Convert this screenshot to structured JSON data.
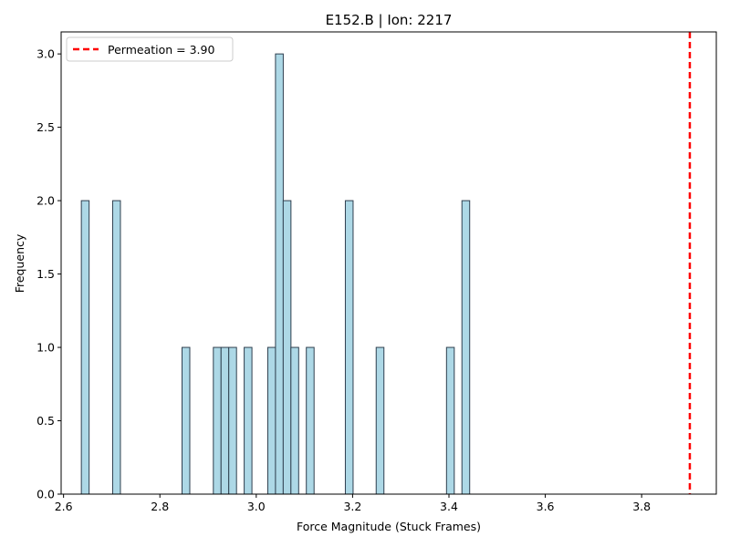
{
  "chart_data": {
    "type": "bar",
    "title": "E152.B | Ion: 2217",
    "xlabel": "Force Magnitude (Stuck Frames)",
    "ylabel": "Frequency",
    "xlim": [
      2.595,
      3.955
    ],
    "ylim": [
      0,
      3.15
    ],
    "xticks": [
      "2.6",
      "2.8",
      "3.0",
      "3.2",
      "3.4",
      "3.6",
      "3.8"
    ],
    "xtick_values": [
      2.6,
      2.8,
      3.0,
      3.2,
      3.4,
      3.6,
      3.8
    ],
    "yticks": [
      "0.0",
      "0.5",
      "1.0",
      "1.5",
      "2.0",
      "2.5",
      "3.0"
    ],
    "ytick_values": [
      0.0,
      0.5,
      1.0,
      1.5,
      2.0,
      2.5,
      3.0
    ],
    "bin_width": 0.0161,
    "bins": [
      {
        "x": 2.645,
        "count": 2
      },
      {
        "x": 2.71,
        "count": 2
      },
      {
        "x": 2.854,
        "count": 1
      },
      {
        "x": 2.919,
        "count": 1
      },
      {
        "x": 2.935,
        "count": 1
      },
      {
        "x": 2.951,
        "count": 1
      },
      {
        "x": 2.983,
        "count": 1
      },
      {
        "x": 3.032,
        "count": 1
      },
      {
        "x": 3.048,
        "count": 3
      },
      {
        "x": 3.064,
        "count": 2
      },
      {
        "x": 3.08,
        "count": 1
      },
      {
        "x": 3.112,
        "count": 1
      },
      {
        "x": 3.193,
        "count": 2
      },
      {
        "x": 3.257,
        "count": 1
      },
      {
        "x": 3.403,
        "count": 1
      },
      {
        "x": 3.435,
        "count": 2
      }
    ],
    "reference_line": {
      "x": 3.9,
      "label": "Permeation = 3.90",
      "color": "#ff0000",
      "style": "dashed"
    },
    "bar_color": "#add8e6",
    "bar_edge_color": "#2f3f4f",
    "legend_position": "top-left",
    "grid": false
  }
}
